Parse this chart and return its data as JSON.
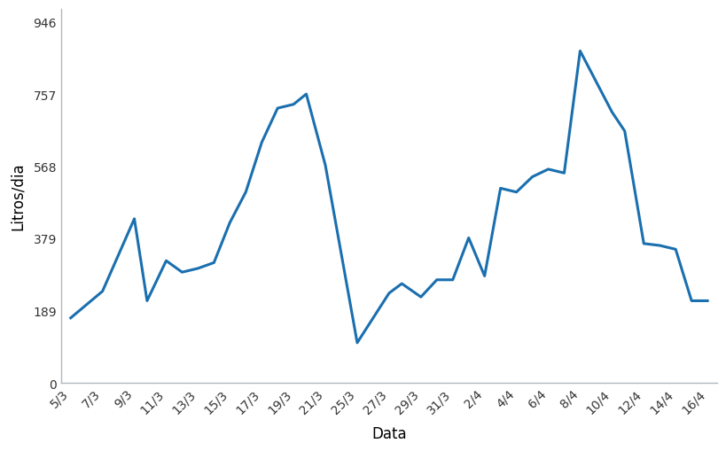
{
  "x_labels": [
    "5/3",
    "7/3",
    "9/3",
    "11/3",
    "13/3",
    "15/3",
    "17/3",
    "19/3",
    "21/3",
    "25/3",
    "27/3",
    "29/3",
    "31/3",
    "2/4",
    "4/4",
    "6/4",
    "8/4",
    "10/4",
    "12/4",
    "14/4",
    "16/4"
  ],
  "line_color": "#1a6faf",
  "line_width": 2.2,
  "yticks": [
    0,
    189,
    379,
    568,
    757,
    946
  ],
  "ytick_labels": [
    "0",
    "189",
    "379",
    "568",
    "757",
    "946"
  ],
  "ylabel": "Litros/dia",
  "xlabel": "Data",
  "ylim": [
    0,
    980
  ],
  "xlim": [
    -0.3,
    20.3
  ],
  "bg_color": "#ffffff",
  "detailed_x": [
    0,
    1,
    2,
    2.4,
    3,
    3.5,
    4,
    4.5,
    5,
    5.5,
    6,
    6.5,
    7,
    7.4,
    8,
    9,
    10,
    10.4,
    11,
    11.5,
    12,
    12.5,
    13,
    13.5,
    14,
    14.5,
    15,
    15.5,
    16,
    17,
    17.4,
    18,
    18.5,
    19,
    19.5,
    20
  ],
  "detailed_y": [
    170,
    240,
    430,
    215,
    320,
    290,
    300,
    315,
    420,
    500,
    630,
    720,
    730,
    757,
    570,
    105,
    235,
    260,
    225,
    270,
    270,
    380,
    280,
    510,
    500,
    540,
    560,
    550,
    870,
    710,
    660,
    365,
    360,
    350,
    215,
    215
  ],
  "tick_fontsize": 10,
  "label_fontsize": 12
}
